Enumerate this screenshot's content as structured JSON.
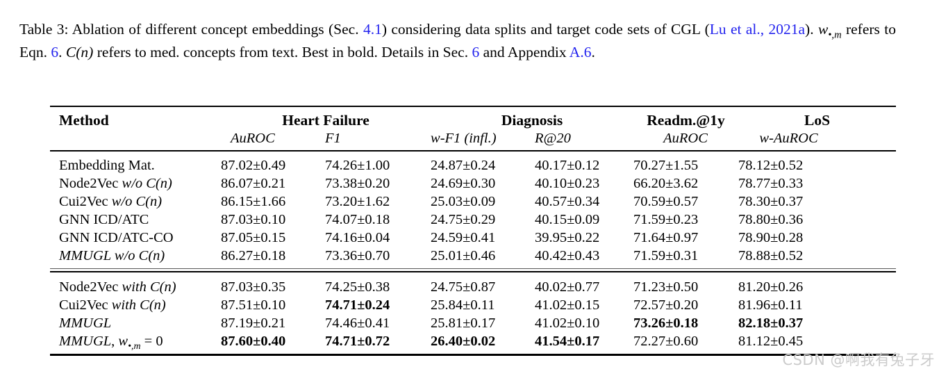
{
  "colors": {
    "link": "#2222ee",
    "text": "#000000",
    "rule": "#000000",
    "watermark": "#cbcbcb"
  },
  "caption": {
    "parts": [
      {
        "t": "Table 3: Ablation of different concept embeddings (Sec. ",
        "s": ""
      },
      {
        "t": "4.1",
        "s": "link"
      },
      {
        "t": ") considering data splits and target code sets of CGL (",
        "s": ""
      },
      {
        "t": "Lu et al., 2021a",
        "s": "link"
      },
      {
        "t": "). ",
        "s": ""
      },
      {
        "t": "w",
        "s": "it"
      },
      {
        "t": "•,m",
        "s": "sub"
      },
      {
        "t": " refers to Eqn. ",
        "s": ""
      },
      {
        "t": "6",
        "s": "link"
      },
      {
        "t": ". ",
        "s": ""
      },
      {
        "t": "C(n)",
        "s": "it"
      },
      {
        "t": " refers to med. concepts from text. Best in bold. Details in Sec. ",
        "s": ""
      },
      {
        "t": "6",
        "s": "link"
      },
      {
        "t": " and Appendix ",
        "s": ""
      },
      {
        "t": "A.6",
        "s": "link"
      },
      {
        "t": ".",
        "s": ""
      }
    ]
  },
  "table": {
    "columns": {
      "method": "Method",
      "groups": [
        {
          "label": "Heart Failure",
          "sub": [
            "AuROC",
            "F1"
          ]
        },
        {
          "label": "Diagnosis",
          "sub": [
            "w-F1 (infl.)",
            "R@20"
          ]
        },
        {
          "label": "Readm.@1y",
          "sub": [
            "AuROC"
          ]
        },
        {
          "label": "LoS",
          "sub": [
            "w-AuROC"
          ]
        }
      ]
    },
    "groups": [
      {
        "rows": [
          {
            "method": [
              {
                "t": "Embedding Mat.",
                "s": ""
              }
            ],
            "values": [
              "87.02±0.49",
              "74.26±1.00",
              "24.87±0.24",
              "40.17±0.12",
              "70.27±1.55",
              "78.12±0.52"
            ],
            "bold": []
          },
          {
            "method": [
              {
                "t": "Node2Vec ",
                "s": ""
              },
              {
                "t": "w/o C(n)",
                "s": "it"
              }
            ],
            "values": [
              "86.07±0.21",
              "73.38±0.20",
              "24.69±0.30",
              "40.10±0.23",
              "66.20±3.62",
              "78.77±0.33"
            ],
            "bold": []
          },
          {
            "method": [
              {
                "t": "Cui2Vec ",
                "s": ""
              },
              {
                "t": "w/o C(n)",
                "s": "it"
              }
            ],
            "values": [
              "86.15±1.66",
              "73.20±1.62",
              "25.03±0.09",
              "40.57±0.34",
              "70.59±0.57",
              "78.30±0.37"
            ],
            "bold": []
          },
          {
            "method": [
              {
                "t": "GNN ICD/ATC",
                "s": ""
              }
            ],
            "values": [
              "87.03±0.10",
              "74.07±0.18",
              "24.75±0.29",
              "40.15±0.09",
              "71.59±0.23",
              "78.80±0.36"
            ],
            "bold": []
          },
          {
            "method": [
              {
                "t": "GNN ICD/ATC-CO",
                "s": ""
              }
            ],
            "values": [
              "87.05±0.15",
              "74.16±0.04",
              "24.59±0.41",
              "39.95±0.22",
              "71.64±0.97",
              "78.90±0.28"
            ],
            "bold": []
          },
          {
            "method": [
              {
                "t": "MMUGL w/o C(n)",
                "s": "it"
              }
            ],
            "values": [
              "86.27±0.18",
              "73.36±0.70",
              "25.01±0.46",
              "40.42±0.43",
              "71.59±0.31",
              "78.88±0.52"
            ],
            "bold": []
          }
        ]
      },
      {
        "rows": [
          {
            "method": [
              {
                "t": "Node2Vec ",
                "s": ""
              },
              {
                "t": "with C(n)",
                "s": "it"
              }
            ],
            "values": [
              "87.03±0.35",
              "74.25±0.38",
              "24.75±0.87",
              "40.02±0.77",
              "71.23±0.50",
              "81.20±0.26"
            ],
            "bold": []
          },
          {
            "method": [
              {
                "t": "Cui2Vec ",
                "s": ""
              },
              {
                "t": "with C(n)",
                "s": "it"
              }
            ],
            "values": [
              "87.51±0.10",
              "74.71±0.24",
              "25.84±0.11",
              "41.02±0.15",
              "72.57±0.20",
              "81.96±0.11"
            ],
            "bold": [
              1
            ]
          },
          {
            "method": [
              {
                "t": "MMUGL",
                "s": "it"
              }
            ],
            "values": [
              "87.19±0.21",
              "74.46±0.41",
              "25.81±0.17",
              "41.02±0.10",
              "73.26±0.18",
              "82.18±0.37"
            ],
            "bold": [
              4,
              5
            ]
          },
          {
            "method": [
              {
                "t": "MMUGL",
                "s": "it"
              },
              {
                "t": ", ",
                "s": ""
              },
              {
                "t": "w",
                "s": "it"
              },
              {
                "t": "•,m",
                "s": "sub"
              },
              {
                "t": " = 0",
                "s": ""
              }
            ],
            "values": [
              "87.60±0.40",
              "74.71±0.72",
              "26.40±0.02",
              "41.54±0.17",
              "72.27±0.60",
              "81.12±0.45"
            ],
            "bold": [
              0,
              1,
              2,
              3
            ]
          }
        ]
      }
    ]
  },
  "watermark": {
    "text": "CSDN @啊我有兔子牙"
  }
}
